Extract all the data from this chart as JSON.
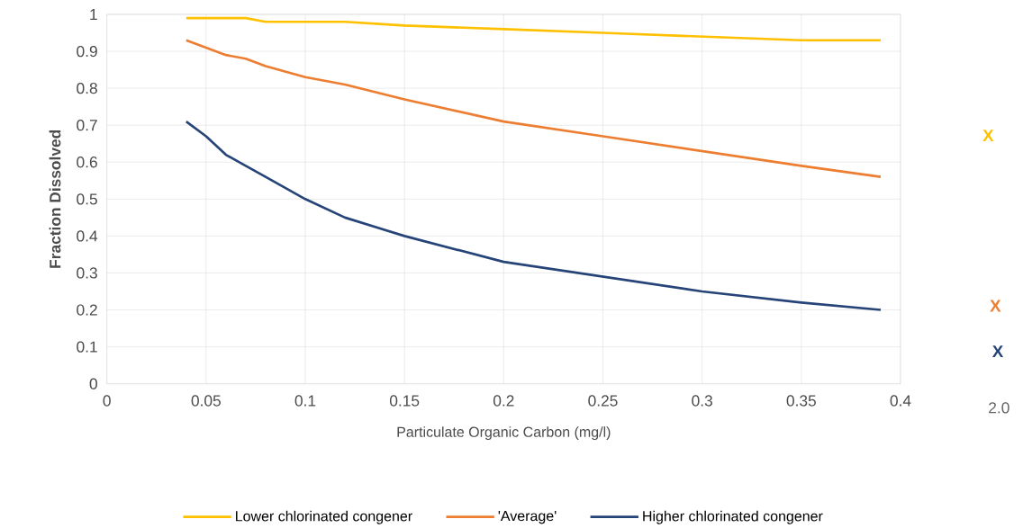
{
  "chart_data": {
    "type": "line",
    "xlabel": "Particulate Organic Carbon (mg/l)",
    "ylabel": "Fraction Dissolved",
    "x": [
      0.04,
      0.05,
      0.06,
      0.07,
      0.08,
      0.1,
      0.12,
      0.15,
      0.2,
      0.25,
      0.3,
      0.35,
      0.39
    ],
    "series": [
      {
        "name": "Lower chlorinated congener",
        "color": "#ffc000",
        "values": [
          0.99,
          0.99,
          0.99,
          0.99,
          0.98,
          0.98,
          0.98,
          0.97,
          0.96,
          0.95,
          0.94,
          0.93,
          0.93
        ]
      },
      {
        "name": "'Average'",
        "color": "#ed7d31",
        "values": [
          0.93,
          0.91,
          0.89,
          0.88,
          0.86,
          0.83,
          0.81,
          0.77,
          0.71,
          0.67,
          0.63,
          0.59,
          0.56
        ]
      },
      {
        "name": "Higher chlorinated congener",
        "color": "#264478",
        "values": [
          0.71,
          0.67,
          0.62,
          0.59,
          0.56,
          0.5,
          0.45,
          0.4,
          0.33,
          0.29,
          0.25,
          0.22,
          0.2
        ]
      }
    ],
    "xlim": [
      0,
      0.4
    ],
    "ylim": [
      0,
      1
    ],
    "xticks": [
      0,
      0.05,
      0.1,
      0.15,
      0.2,
      0.25,
      0.3,
      0.35,
      0.4
    ],
    "yticks": [
      0,
      0.1,
      0.2,
      0.3,
      0.4,
      0.5,
      0.6,
      0.7,
      0.8,
      0.9,
      1
    ],
    "grid": true,
    "legend": "bottom",
    "marker": "none",
    "line_style": "solid",
    "annotations": [
      "X",
      "X",
      "X",
      "2.0"
    ]
  }
}
